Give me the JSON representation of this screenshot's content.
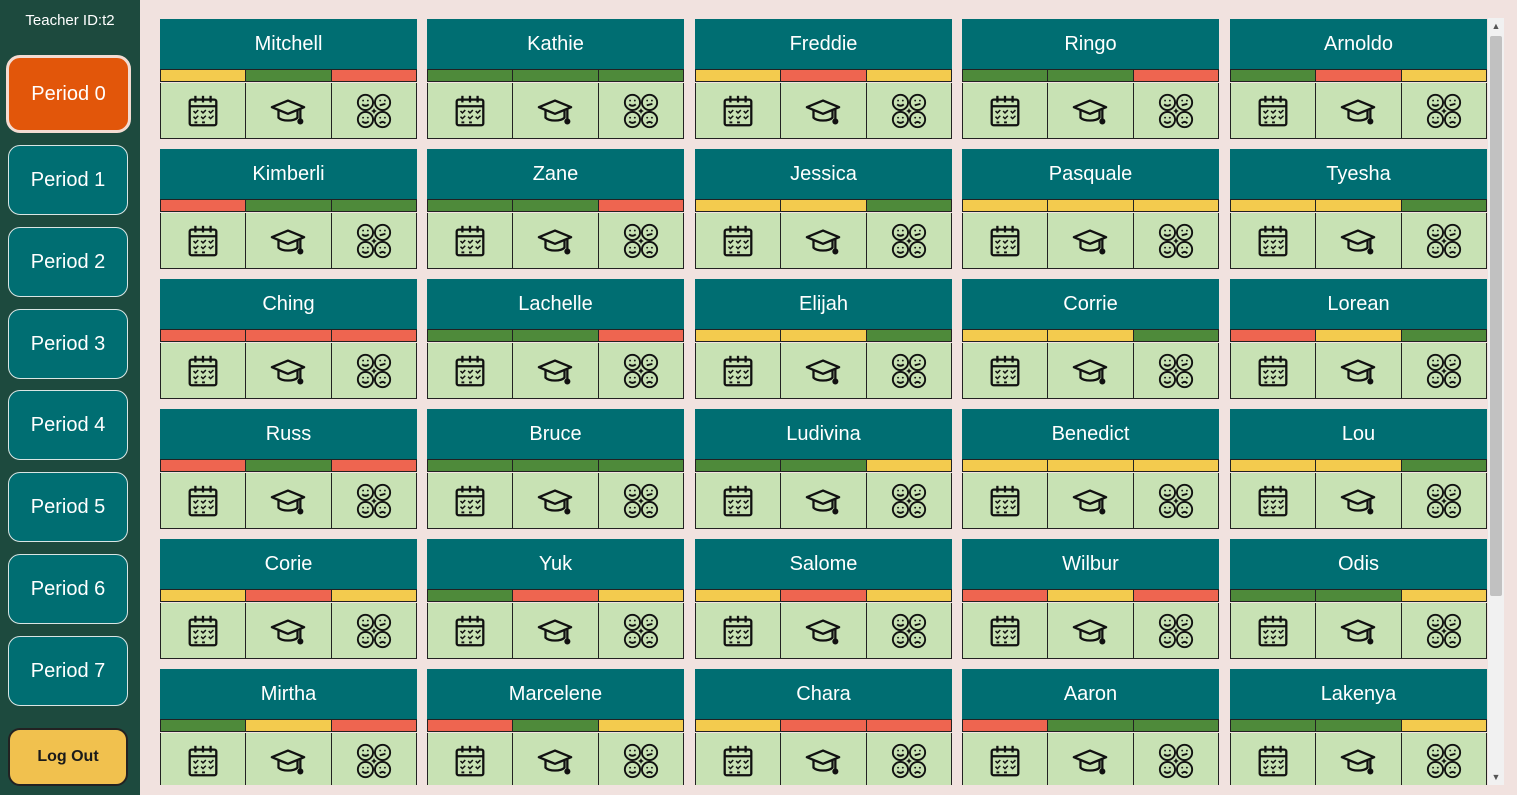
{
  "teacher_id": "Teacher ID:t2",
  "periods": [
    {
      "label": "Period 0",
      "active": true
    },
    {
      "label": "Period 1",
      "active": false
    },
    {
      "label": "Period 2",
      "active": false
    },
    {
      "label": "Period 3",
      "active": false
    },
    {
      "label": "Period 4",
      "active": false
    },
    {
      "label": "Period 5",
      "active": false
    },
    {
      "label": "Period 6",
      "active": false
    },
    {
      "label": "Period 7",
      "active": false
    }
  ],
  "logout_label": "Log Out",
  "status_colors": {
    "green": "#4e8a3a",
    "red": "#ee6550",
    "yellow": "#f3cb4e"
  },
  "icon_names": [
    "calendar-icon",
    "graduation-cap-icon",
    "emotions-icon"
  ],
  "students": [
    {
      "name": "Mitchell",
      "status": [
        "yellow",
        "green",
        "red"
      ]
    },
    {
      "name": "Kathie",
      "status": [
        "green",
        "green",
        "green"
      ]
    },
    {
      "name": "Freddie",
      "status": [
        "yellow",
        "red",
        "yellow"
      ]
    },
    {
      "name": "Ringo",
      "status": [
        "green",
        "green",
        "red"
      ]
    },
    {
      "name": "Arnoldo",
      "status": [
        "green",
        "red",
        "yellow"
      ]
    },
    {
      "name": "Kimberli",
      "status": [
        "red",
        "green",
        "green"
      ]
    },
    {
      "name": "Zane",
      "status": [
        "green",
        "green",
        "red"
      ]
    },
    {
      "name": "Jessica",
      "status": [
        "yellow",
        "yellow",
        "green"
      ]
    },
    {
      "name": "Pasquale",
      "status": [
        "yellow",
        "yellow",
        "yellow"
      ]
    },
    {
      "name": "Tyesha",
      "status": [
        "yellow",
        "yellow",
        "green"
      ]
    },
    {
      "name": "Ching",
      "status": [
        "red",
        "red",
        "red"
      ]
    },
    {
      "name": "Lachelle",
      "status": [
        "green",
        "green",
        "red"
      ]
    },
    {
      "name": "Elijah",
      "status": [
        "yellow",
        "yellow",
        "green"
      ]
    },
    {
      "name": "Corrie",
      "status": [
        "yellow",
        "yellow",
        "green"
      ]
    },
    {
      "name": "Lorean",
      "status": [
        "red",
        "yellow",
        "green"
      ]
    },
    {
      "name": "Russ",
      "status": [
        "red",
        "green",
        "red"
      ]
    },
    {
      "name": "Bruce",
      "status": [
        "green",
        "green",
        "green"
      ]
    },
    {
      "name": "Ludivina",
      "status": [
        "green",
        "green",
        "yellow"
      ]
    },
    {
      "name": "Benedict",
      "status": [
        "yellow",
        "yellow",
        "yellow"
      ]
    },
    {
      "name": "Lou",
      "status": [
        "yellow",
        "yellow",
        "green"
      ]
    },
    {
      "name": "Corie",
      "status": [
        "yellow",
        "red",
        "yellow"
      ]
    },
    {
      "name": "Yuk",
      "status": [
        "green",
        "red",
        "yellow"
      ]
    },
    {
      "name": "Salome",
      "status": [
        "yellow",
        "red",
        "yellow"
      ]
    },
    {
      "name": "Wilbur",
      "status": [
        "red",
        "yellow",
        "red"
      ]
    },
    {
      "name": "Odis",
      "status": [
        "green",
        "green",
        "yellow"
      ]
    },
    {
      "name": "Mirtha",
      "status": [
        "green",
        "yellow",
        "red"
      ]
    },
    {
      "name": "Marcelene",
      "status": [
        "red",
        "green",
        "yellow"
      ]
    },
    {
      "name": "Chara",
      "status": [
        "yellow",
        "red",
        "red"
      ]
    },
    {
      "name": "Aaron",
      "status": [
        "red",
        "green",
        "green"
      ]
    },
    {
      "name": "Lakenya",
      "status": [
        "green",
        "green",
        "yellow"
      ]
    }
  ]
}
